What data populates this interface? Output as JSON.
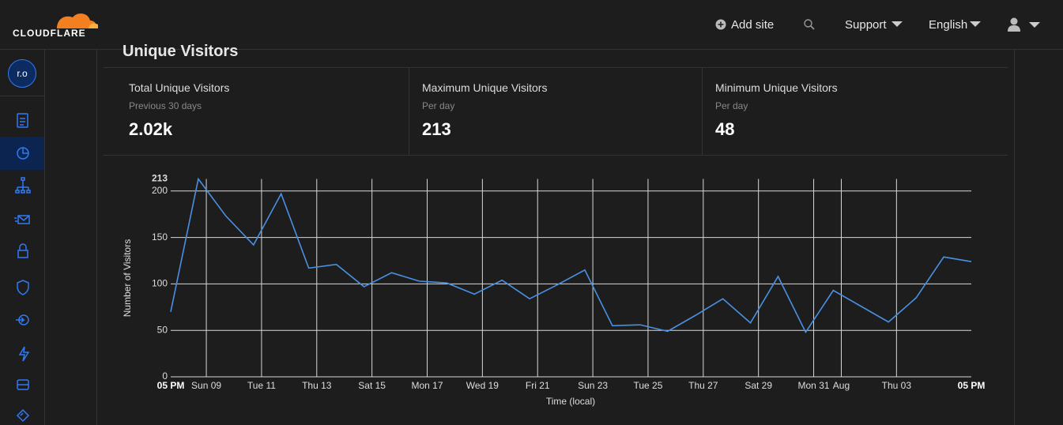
{
  "header": {
    "logo": "CLOUDFLARE",
    "add_site": "Add site",
    "support": "Support",
    "language": "English"
  },
  "sidebar": {
    "account": "r.o"
  },
  "section_title": "Unique Visitors",
  "stats": [
    {
      "label": "Total Unique Visitors",
      "sublabel": "Previous 30 days",
      "value": "2.02k"
    },
    {
      "label": "Maximum Unique Visitors",
      "sublabel": "Per day",
      "value": "213"
    },
    {
      "label": "Minimum Unique Visitors",
      "sublabel": "Per day",
      "value": "48"
    }
  ],
  "chart_data": {
    "type": "line",
    "color": "#4a90e2",
    "grid": true,
    "xlabel": "Time (local)",
    "ylabel": "Number of Visitors",
    "x": [
      0,
      1,
      2,
      3,
      4,
      5,
      6,
      7,
      8,
      9,
      10,
      11,
      12,
      13,
      14,
      15,
      16,
      17,
      18,
      19,
      20,
      21,
      22,
      23,
      24,
      25,
      26,
      27,
      28,
      29
    ],
    "values": [
      70,
      213,
      173,
      142,
      197,
      117,
      121,
      97,
      112,
      103,
      101,
      89,
      104,
      84,
      99,
      115,
      55,
      56,
      49,
      66,
      84,
      58,
      108,
      48,
      93,
      76,
      59,
      85,
      129,
      124
    ],
    "xlim": [
      0,
      29
    ],
    "xticks": [
      {
        "value": 0,
        "label": "05 PM"
      },
      {
        "value": 1.29,
        "label": "Sun 09"
      },
      {
        "value": 3.29,
        "label": "Tue 11"
      },
      {
        "value": 5.29,
        "label": "Thu 13"
      },
      {
        "value": 7.29,
        "label": "Sat 15"
      },
      {
        "value": 9.29,
        "label": "Mon 17"
      },
      {
        "value": 11.29,
        "label": "Wed 19"
      },
      {
        "value": 13.29,
        "label": "Fri 21"
      },
      {
        "value": 15.29,
        "label": "Sun 23"
      },
      {
        "value": 17.29,
        "label": "Tue 25"
      },
      {
        "value": 19.29,
        "label": "Thu 27"
      },
      {
        "value": 21.29,
        "label": "Sat 29"
      },
      {
        "value": 23.29,
        "label": "Mon 31"
      },
      {
        "value": 24.29,
        "label": "Aug"
      },
      {
        "value": 26.29,
        "label": "Thu 03"
      },
      {
        "value": 29,
        "label": "05 PM"
      }
    ],
    "ylim": [
      0,
      213
    ],
    "yticks": [
      0,
      50,
      100,
      150,
      200,
      213
    ]
  }
}
